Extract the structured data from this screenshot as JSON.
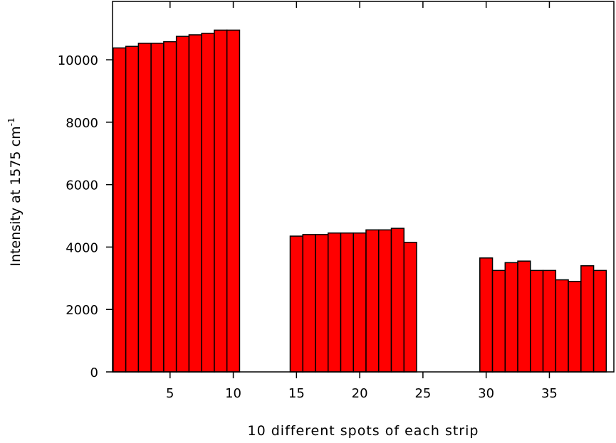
{
  "chart_data": {
    "type": "bar",
    "xlabel": "10 different spots of each strip",
    "ylabel": "Intensity at 1575 cm",
    "ylabel_superscript": "-1",
    "x": [
      1,
      2,
      3,
      4,
      5,
      6,
      7,
      8,
      9,
      10,
      15,
      16,
      17,
      18,
      19,
      20,
      21,
      22,
      23,
      24,
      30,
      31,
      32,
      33,
      34,
      35,
      36,
      37,
      38,
      39
    ],
    "values": [
      10380,
      10430,
      10530,
      10530,
      10580,
      10750,
      10800,
      10850,
      10950,
      10950,
      4350,
      4400,
      4400,
      4450,
      4450,
      4450,
      4550,
      4550,
      4600,
      4150,
      3650,
      3250,
      3500,
      3550,
      3250,
      3250,
      2950,
      2900,
      3400,
      3250
    ],
    "color": "#ff0000",
    "edgecolor": "#000000",
    "bar_width": 1,
    "xlim": [
      0.45,
      40.1
    ],
    "xticks": [
      5,
      10,
      15,
      20,
      25,
      30,
      35
    ],
    "ylim": [
      0,
      11870
    ],
    "yticks": [
      0,
      2000,
      4000,
      6000,
      8000,
      10000
    ]
  }
}
